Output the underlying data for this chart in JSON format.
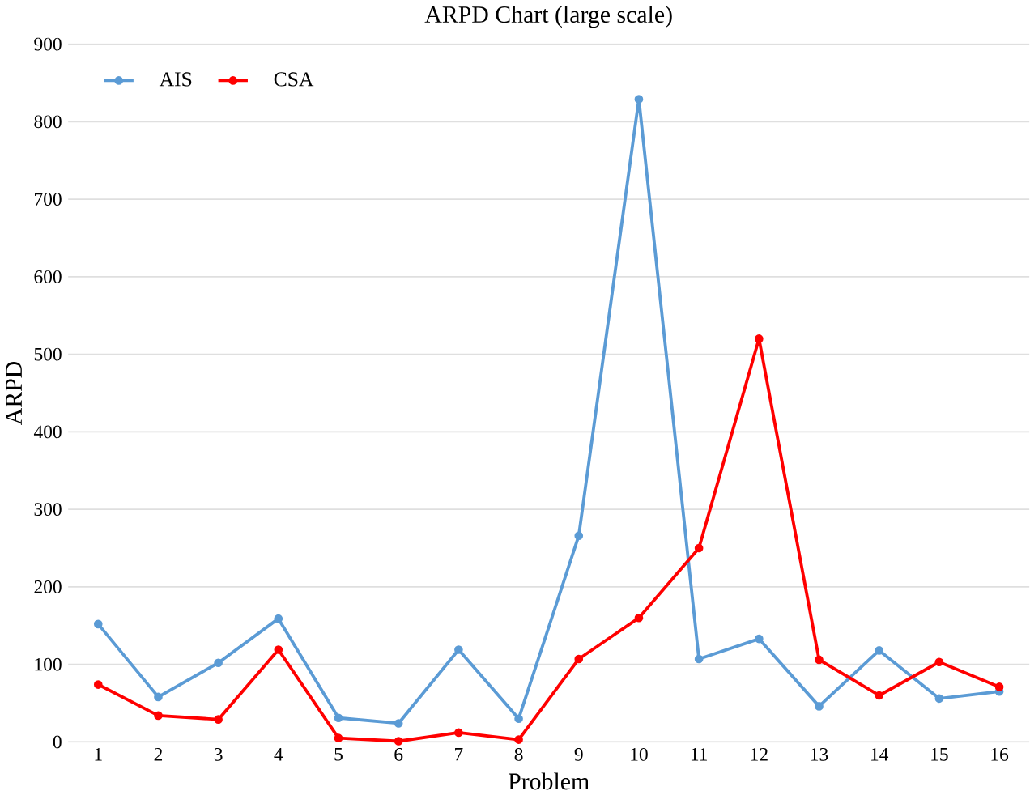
{
  "chart_data": {
    "type": "line",
    "title": "ARPD Chart (large scale)",
    "xlabel": "Problem",
    "ylabel": "ARPD",
    "categories": [
      "1",
      "2",
      "3",
      "4",
      "5",
      "6",
      "7",
      "8",
      "9",
      "10",
      "11",
      "12",
      "13",
      "14",
      "15",
      "16"
    ],
    "series": [
      {
        "name": "AIS",
        "color": "#5b9bd5",
        "values": [
          152,
          58,
          102,
          159,
          31,
          24,
          119,
          30,
          266,
          829,
          107,
          133,
          46,
          118,
          56,
          65
        ]
      },
      {
        "name": "CSA",
        "color": "#ff0000",
        "values": [
          74,
          34,
          29,
          119,
          5,
          1,
          12,
          3,
          107,
          160,
          250,
          520,
          106,
          60,
          103,
          71
        ]
      }
    ],
    "ylim": [
      0,
      900
    ],
    "yticks": [
      0,
      100,
      200,
      300,
      400,
      500,
      600,
      700,
      800,
      900
    ],
    "grid": "y",
    "legend": "top left",
    "marker": "circle",
    "line_style": "solid"
  }
}
